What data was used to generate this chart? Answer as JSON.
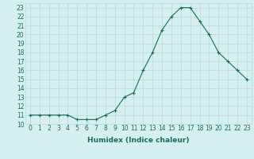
{
  "x": [
    0,
    1,
    2,
    3,
    4,
    5,
    6,
    7,
    8,
    9,
    10,
    11,
    12,
    13,
    14,
    15,
    16,
    17,
    18,
    19,
    20,
    21,
    22,
    23
  ],
  "y": [
    11,
    11,
    11,
    11,
    11,
    10.5,
    10.5,
    10.5,
    11,
    11.5,
    13,
    13.5,
    16,
    18,
    20.5,
    22,
    23,
    23,
    21.5,
    20,
    18,
    17,
    16,
    15
  ],
  "line_color": "#1a6b5a",
  "marker": "+",
  "marker_size": 3,
  "marker_color": "#1a6b5a",
  "bg_color": "#d6f0f0",
  "grid_color": "#b8d8d8",
  "xlabel": "Humidex (Indice chaleur)",
  "xlim": [
    -0.5,
    23.5
  ],
  "ylim": [
    10,
    23.5
  ],
  "yticks": [
    10,
    11,
    12,
    13,
    14,
    15,
    16,
    17,
    18,
    19,
    20,
    21,
    22,
    23
  ],
  "xticks": [
    0,
    1,
    2,
    3,
    4,
    5,
    6,
    7,
    8,
    9,
    10,
    11,
    12,
    13,
    14,
    15,
    16,
    17,
    18,
    19,
    20,
    21,
    22,
    23
  ],
  "tick_fontsize": 5.5,
  "xlabel_fontsize": 6.5,
  "linewidth": 0.8
}
